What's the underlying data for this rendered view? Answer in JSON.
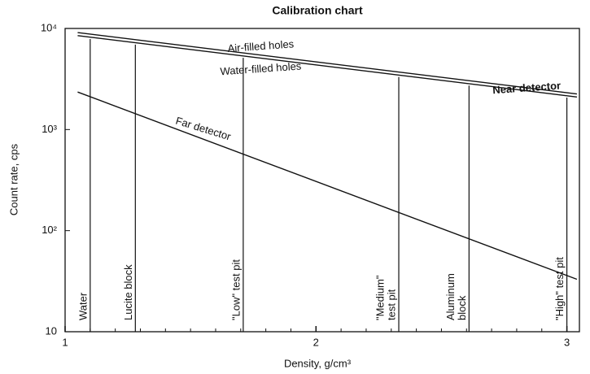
{
  "chart_data": {
    "type": "line",
    "title": "Calibration chart",
    "xlabel": "Density, g/cm³",
    "ylabel": "Count rate, cps",
    "xlim": [
      1,
      3.05
    ],
    "ylim": [
      10,
      10000
    ],
    "log_y": true,
    "xticks": [
      1,
      2,
      3
    ],
    "xminorticks": [
      1.1,
      1.2,
      1.3,
      1.4,
      1.5,
      1.6,
      1.7,
      1.8,
      1.9,
      2.1,
      2.2,
      2.3,
      2.4,
      2.5,
      2.6,
      2.7,
      2.8,
      2.9
    ],
    "yticks": [
      10,
      {
        "value": 100,
        "label": "10²"
      },
      {
        "value": 1000,
        "label": "10³"
      },
      {
        "value": 10000,
        "label": "10⁴"
      }
    ],
    "series": [
      {
        "name": "Air-filled holes",
        "color": "#111111",
        "x": [
          1.05,
          3.04
        ],
        "values": [
          9100,
          2250
        ]
      },
      {
        "name": "Water-filled holes",
        "color": "#111111",
        "x": [
          1.05,
          3.04
        ],
        "values": [
          8500,
          2100
        ]
      },
      {
        "name": "Far detector",
        "color": "#111111",
        "x": [
          1.05,
          3.04
        ],
        "values": [
          2350,
          33
        ]
      }
    ],
    "annotations": [
      "Near detector"
    ],
    "references": [
      {
        "label": [
          "Water"
        ],
        "x": 1.1
      },
      {
        "label": [
          "Lucite block"
        ],
        "x": 1.28
      },
      {
        "label": [
          "\"Low\" test pit"
        ],
        "x": 1.71
      },
      {
        "label": [
          "\"Medium\"",
          "test pit"
        ],
        "x": 2.33
      },
      {
        "label": [
          "Aluminum",
          "block"
        ],
        "x": 2.61
      },
      {
        "label": [
          "\"High\" test pit"
        ],
        "x": 3.0
      }
    ]
  }
}
